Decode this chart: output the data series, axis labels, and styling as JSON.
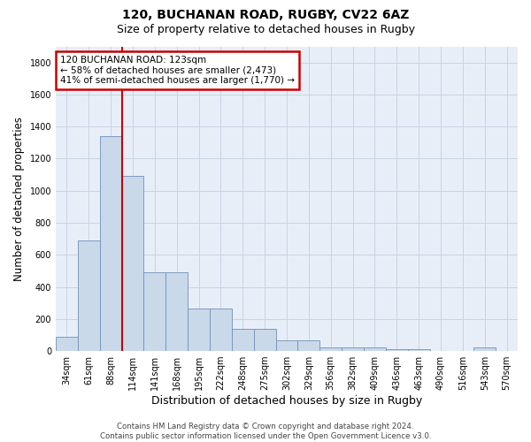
{
  "title": "120, BUCHANAN ROAD, RUGBY, CV22 6AZ",
  "subtitle": "Size of property relative to detached houses in Rugby",
  "xlabel": "Distribution of detached houses by size in Rugby",
  "ylabel": "Number of detached properties",
  "categories": [
    "34sqm",
    "61sqm",
    "88sqm",
    "114sqm",
    "141sqm",
    "168sqm",
    "195sqm",
    "222sqm",
    "248sqm",
    "275sqm",
    "302sqm",
    "329sqm",
    "356sqm",
    "382sqm",
    "409sqm",
    "436sqm",
    "463sqm",
    "490sqm",
    "516sqm",
    "543sqm",
    "570sqm"
  ],
  "values": [
    90,
    690,
    1340,
    1090,
    490,
    490,
    265,
    265,
    140,
    140,
    65,
    65,
    25,
    25,
    25,
    10,
    10,
    0,
    0,
    25,
    0
  ],
  "bar_color": "#c9d9ea",
  "bar_edge_color": "#7090b8",
  "red_line_index": 3,
  "annotation_line1": "120 BUCHANAN ROAD: 123sqm",
  "annotation_line2": "← 58% of detached houses are smaller (2,473)",
  "annotation_line3": "41% of semi-detached houses are larger (1,770) →",
  "annotation_box_color": "#ffffff",
  "annotation_box_edge": "#cc0000",
  "red_line_color": "#cc0000",
  "grid_color": "#c8d4e4",
  "background_color": "#e8eef8",
  "ylim": [
    0,
    1900
  ],
  "yticks": [
    0,
    200,
    400,
    600,
    800,
    1000,
    1200,
    1400,
    1600,
    1800
  ],
  "footer_text": "Contains HM Land Registry data © Crown copyright and database right 2024.\nContains public sector information licensed under the Open Government Licence v3.0.",
  "title_fontsize": 10,
  "subtitle_fontsize": 9,
  "tick_fontsize": 7,
  "ylabel_fontsize": 8.5,
  "xlabel_fontsize": 9
}
